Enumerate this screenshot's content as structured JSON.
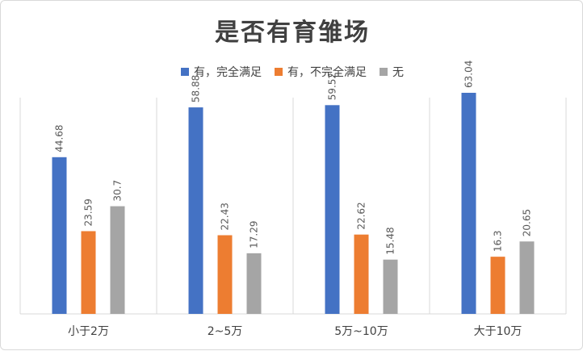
{
  "chart_data": {
    "type": "bar",
    "title": "是否有育雏场",
    "categories": [
      "小于2万",
      "2~5万",
      "5万~10万",
      "大于10万"
    ],
    "series": [
      {
        "name": "有，完全满足",
        "color": "#4472c4",
        "values": [
          44.68,
          58.88,
          59.52,
          63.04
        ]
      },
      {
        "name": "有，不完全满足",
        "color": "#ed7d31",
        "values": [
          23.59,
          22.43,
          22.62,
          16.3
        ]
      },
      {
        "name": "无",
        "color": "#a5a5a5",
        "values": [
          30.7,
          17.29,
          15.48,
          20.65
        ]
      }
    ],
    "ylim": [
      0,
      70
    ],
    "grid": "vertical separators only",
    "legend": "top-center",
    "data_labels": "rotated, above bars"
  }
}
